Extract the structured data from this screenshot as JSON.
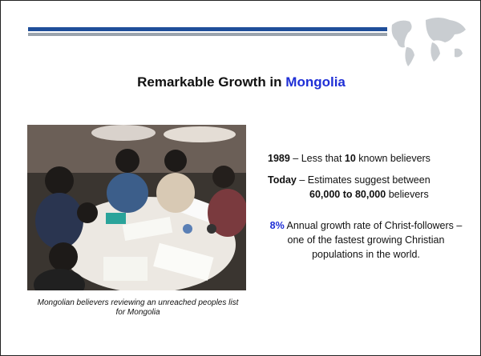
{
  "slide": {
    "title": {
      "text": "Remarkable Growth in ",
      "highlight": "Mongolia"
    },
    "photo_caption": "Mongolian believers reviewing an unreached peoples list for Mongolia",
    "facts": [
      {
        "label": "1989",
        "text": " – Less that ",
        "number": "10",
        "rest": " known believers"
      },
      {
        "label": "Today",
        "text": " – Estimates suggest between",
        "number": "60,000 to 80,000",
        "rest": " believers"
      }
    ],
    "growth": {
      "rate": "8%",
      "text": " Annual growth rate of Christ-followers – one of the fastest growing Christian populations in the world."
    }
  }
}
